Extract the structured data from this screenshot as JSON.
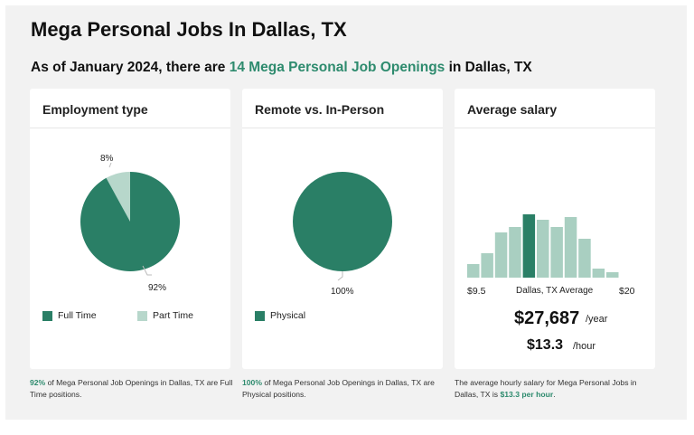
{
  "title": "Mega Personal Jobs In Dallas, TX",
  "subtitle": {
    "prefix": "As of January 2024, there are ",
    "highlight": "14 Mega Personal Job Openings",
    "suffix": " in Dallas, TX"
  },
  "colors": {
    "accent": "#2e8b6e",
    "dark": "#2a7f66",
    "light": "#b7d7cb",
    "bar": "#a9cfc1"
  },
  "cards": {
    "employment": {
      "heading": "Employment type",
      "label_small": "8%",
      "label_big": "92%",
      "legend": [
        "Full Time",
        "Part Time"
      ]
    },
    "remote": {
      "heading": "Remote vs. In-Person",
      "label_big": "100%",
      "legend": [
        "Physical"
      ]
    },
    "salary": {
      "heading": "Average salary",
      "min_label": "$9.5",
      "avg_label": "Dallas, TX Average",
      "max_label": "$20",
      "yearly": "$27,687",
      "yearly_unit": "/year",
      "hourly": "$13.3",
      "hourly_unit": "/hour"
    }
  },
  "footnotes": {
    "employment": {
      "hl": "92%",
      "text": " of Mega Personal Job Openings in Dallas, TX are Full Time positions."
    },
    "remote": {
      "hl": "100%",
      "text": " of Mega Personal Job Openings in Dallas, TX are Physical positions."
    },
    "salary": {
      "text": "The average hourly salary for Mega Personal Jobs in Dallas, TX is ",
      "hl": "$13.3 per hour",
      "end": "."
    }
  },
  "chart_data": [
    {
      "type": "pie",
      "title": "Employment type",
      "categories": [
        "Full Time",
        "Part Time"
      ],
      "values": [
        92,
        8
      ]
    },
    {
      "type": "pie",
      "title": "Remote vs. In-Person",
      "categories": [
        "Physical"
      ],
      "values": [
        100
      ]
    },
    {
      "type": "bar",
      "title": "Average salary",
      "xlabel": "",
      "x_range": [
        "$9.5",
        "$20"
      ],
      "values": [
        15,
        27,
        50,
        56,
        70,
        64,
        56,
        67,
        43,
        10,
        6
      ],
      "highlight_index": 4,
      "highlight_label": "Dallas, TX Average"
    }
  ]
}
